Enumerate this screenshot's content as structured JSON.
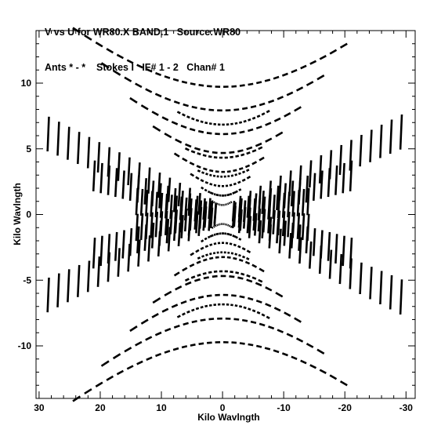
{
  "header": {
    "line1": "V vs U for WR80.X BAND.1   Source:WR80",
    "line2": "Ants * - *    Stokes I   IF# 1 - 2   Chan# 1"
  },
  "chart_data": {
    "type": "scatter",
    "title": "V vs U for WR80.X BAND.1   Source:WR80",
    "subtitle": "Ants * - *    Stokes I   IF# 1 - 2   Chan# 1",
    "xlabel": "Kilo Wavlngth",
    "ylabel": "Kilo Wavlngth",
    "xlim": [
      30.5,
      -31.5
    ],
    "ylim": [
      -14,
      14
    ],
    "xticks": [
      30,
      20,
      10,
      0,
      -10,
      -20,
      -30
    ],
    "yticks": [
      10,
      5,
      0,
      -5,
      -10
    ],
    "x_reversed": true,
    "grid": false,
    "mark_color": "#000000",
    "series": [
      {
        "arcs": [
          {
            "a": 5,
            "s": 13.5,
            "smin": -0.8,
            "smax": 0.95
          },
          {
            "a": 5,
            "s": 11.0,
            "smin": -0.8,
            "smax": 0.95
          },
          {
            "a": 5,
            "s": 8.5,
            "smin": -0.8,
            "smax": 0.95
          },
          {
            "a": 5,
            "s": 6.5,
            "smin": -0.8,
            "smax": 0.95
          },
          {
            "a": 5,
            "s": 4.5,
            "smin": -0.8,
            "smax": 0.95
          },
          {
            "a": 4,
            "s": 3.0,
            "smin": -0.8,
            "smax": 0.95
          },
          {
            "a": 3,
            "s": 2.0,
            "smin": -0.8,
            "smax": 0.95
          },
          {
            "a": 2,
            "s": 1.0,
            "smin": -0.8,
            "smax": 0.95
          },
          {
            "a": 9.5,
            "s": 9.5,
            "smin": -0.55,
            "smax": 0.55
          },
          {
            "a": 8,
            "s": 6.0,
            "smin": -0.6,
            "smax": 0.6
          },
          {
            "a": 6.8,
            "s": 4.0,
            "smin": -0.6,
            "smax": 0.6
          },
          {
            "a": 5.3,
            "s": 2.0,
            "smin": -0.6,
            "smax": 0.6
          }
        ],
        "tracks": [
          {
            "slope": 0.215,
            "x0": 28.5,
            "x1": -29.2
          },
          {
            "slope": -0.215,
            "x0": 28.5,
            "x1": -29.2
          },
          {
            "slope": 0.14,
            "x0": 21,
            "x1": -21
          },
          {
            "slope": -0.14,
            "x0": 21,
            "x1": -21
          },
          {
            "slope": 0.07,
            "x0": 14,
            "x1": -14
          },
          {
            "slope": -0.07,
            "x0": 14,
            "x1": -14
          }
        ]
      }
    ]
  }
}
